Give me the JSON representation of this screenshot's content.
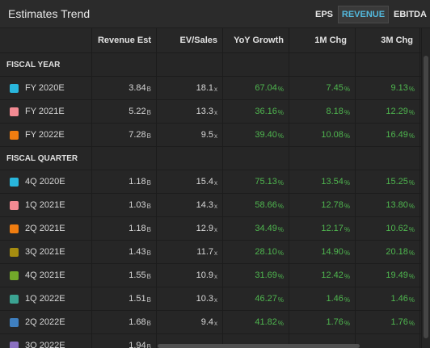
{
  "header": {
    "title": "Estimates Trend",
    "tabs": [
      {
        "label": "EPS",
        "active": false
      },
      {
        "label": "REVENUE",
        "active": true
      },
      {
        "label": "EBITDA",
        "active": false
      }
    ]
  },
  "columns": [
    "Revenue Est",
    "EV/Sales",
    "YoY Growth",
    "1M Chg",
    "3M Chg"
  ],
  "sections": {
    "fiscal_year": "FISCAL YEAR",
    "fiscal_quarter": "FISCAL QUARTER"
  },
  "units": {
    "billion": "B",
    "times": "x",
    "percent": "%"
  },
  "fiscal_year_rows": [
    {
      "label": "FY 2020E",
      "color": "#29b6dc",
      "rev": "3.84",
      "ev": "18.1",
      "yoy": "67.04",
      "m1": "7.45",
      "m3": "9.13"
    },
    {
      "label": "FY 2021E",
      "color": "#f28a92",
      "rev": "5.22",
      "ev": "13.3",
      "yoy": "36.16",
      "m1": "8.18",
      "m3": "12.29"
    },
    {
      "label": "FY 2022E",
      "color": "#f07d10",
      "rev": "7.28",
      "ev": "9.5",
      "yoy": "39.40",
      "m1": "10.08",
      "m3": "16.49"
    }
  ],
  "fiscal_quarter_rows": [
    {
      "label": "4Q 2020E",
      "color": "#29b6dc",
      "rev": "1.18",
      "ev": "15.4",
      "yoy": "75.13",
      "m1": "13.54",
      "m3": "15.25"
    },
    {
      "label": "1Q 2021E",
      "color": "#f28a92",
      "rev": "1.03",
      "ev": "14.3",
      "yoy": "58.66",
      "m1": "12.78",
      "m3": "13.80"
    },
    {
      "label": "2Q 2021E",
      "color": "#f07d10",
      "rev": "1.18",
      "ev": "12.9",
      "yoy": "34.49",
      "m1": "12.17",
      "m3": "10.62"
    },
    {
      "label": "3Q 2021E",
      "color": "#a58c10",
      "rev": "1.43",
      "ev": "11.7",
      "yoy": "28.10",
      "m1": "14.90",
      "m3": "20.18"
    },
    {
      "label": "4Q 2021E",
      "color": "#72a82a",
      "rev": "1.55",
      "ev": "10.9",
      "yoy": "31.69",
      "m1": "12.42",
      "m3": "19.49"
    },
    {
      "label": "1Q 2022E",
      "color": "#3ba392",
      "rev": "1.51",
      "ev": "10.3",
      "yoy": "46.27",
      "m1": "1.46",
      "m3": "1.46"
    },
    {
      "label": "2Q 2022E",
      "color": "#3f7fbf",
      "rev": "1.68",
      "ev": "9.4",
      "yoy": "41.82",
      "m1": "1.76",
      "m3": "1.76"
    },
    {
      "label": "3Q 2022E",
      "color": "#8a6fc0",
      "rev": "1.94",
      "ev": "",
      "yoy": "",
      "m1": "",
      "m3": ""
    }
  ]
}
